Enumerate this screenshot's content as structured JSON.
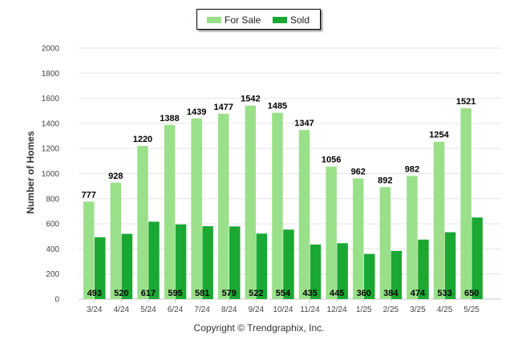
{
  "chart_data": {
    "type": "bar",
    "categories": [
      "3/24",
      "4/24",
      "5/24",
      "6/24",
      "7/24",
      "8/24",
      "9/24",
      "10/24",
      "11/24",
      "12/24",
      "1/25",
      "2/25",
      "3/25",
      "4/25",
      "5/25"
    ],
    "series": [
      {
        "name": "For Sale",
        "color": "#9ae08a",
        "values": [
          777,
          928,
          1220,
          1388,
          1439,
          1477,
          1542,
          1485,
          1347,
          1056,
          962,
          892,
          982,
          1254,
          1521
        ]
      },
      {
        "name": "Sold",
        "color": "#1aa832",
        "values": [
          493,
          520,
          617,
          595,
          581,
          579,
          522,
          554,
          435,
          445,
          360,
          384,
          474,
          533,
          650
        ]
      }
    ],
    "ylabel": "Number of Homes",
    "ylim": [
      0,
      2000
    ],
    "yticks": [
      0,
      200,
      400,
      600,
      800,
      1000,
      1200,
      1400,
      1600,
      1800,
      2000
    ],
    "grid": true,
    "legend_position": "top-center"
  },
  "footer": "Copyright © Trendgraphix, Inc."
}
